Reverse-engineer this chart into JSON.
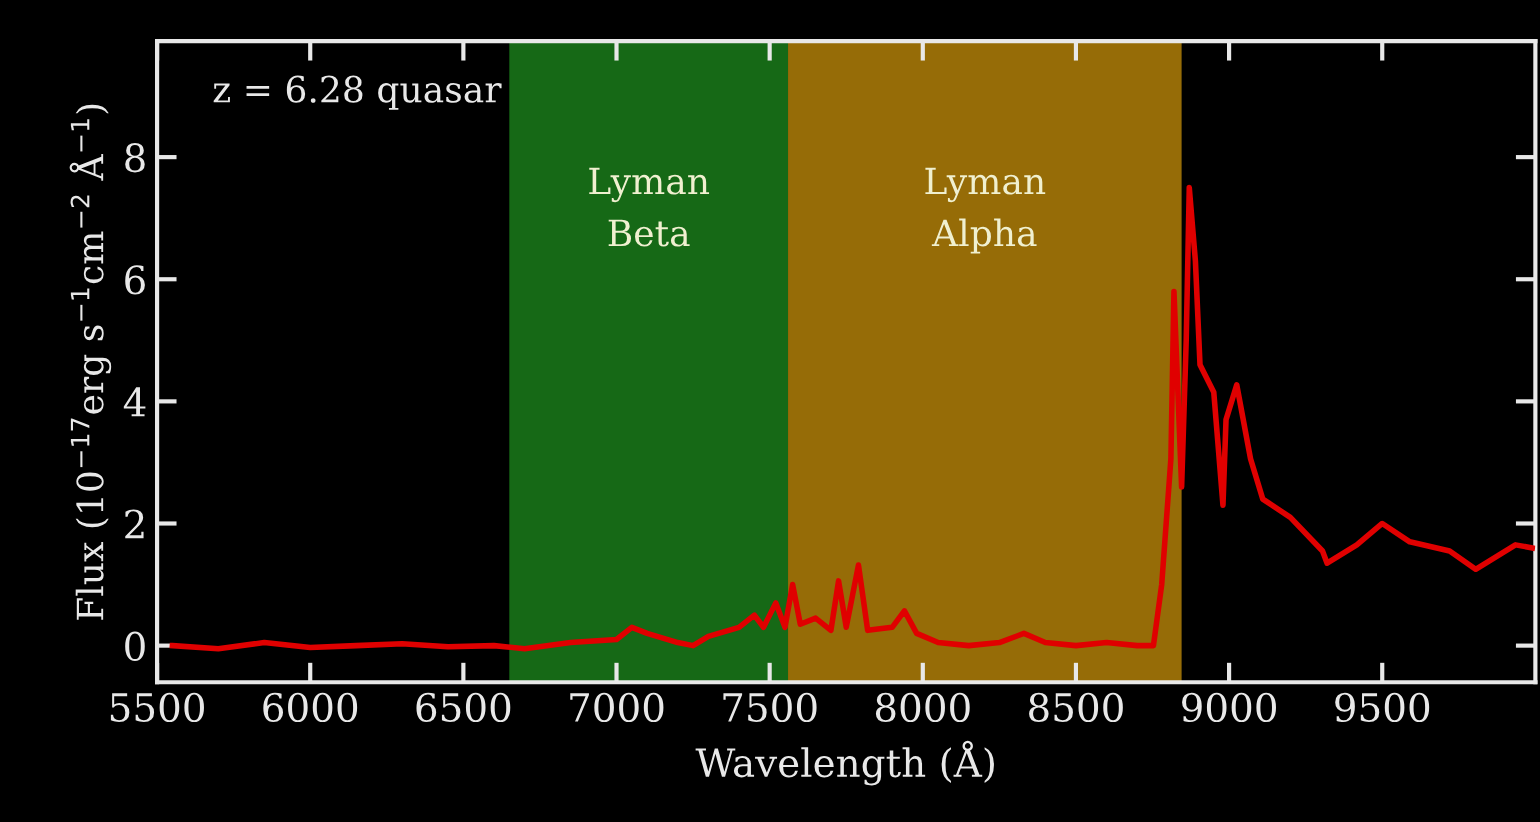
{
  "chart_data": {
    "type": "line",
    "xlabel": "Wavelength (Å)",
    "ylabel": "Flux (10$^{−17}$erg s$^{−1}$cm$^{−2}$ Å$^{−1}$)",
    "annotations": [
      "z = 6.28 quasar"
    ],
    "xlim": [
      5500,
      10000
    ],
    "xticks": [
      5500,
      6000,
      6500,
      7000,
      7500,
      8000,
      8500,
      9000,
      9500
    ],
    "ylim": [
      -0.6,
      9.9
    ],
    "yticks": [
      0,
      2,
      4,
      6,
      8
    ],
    "grid": false,
    "marker": "none",
    "line_style": "solid",
    "bands": [
      {
        "axis": "x",
        "from": 6650,
        "to": 7560,
        "label": "Lyman\nBeta",
        "color": "#1e8c1e"
      },
      {
        "axis": "x",
        "from": 7560,
        "to": 8845,
        "label": "Lyman\nAlpha",
        "color": "#c8900a"
      }
    ],
    "series": [
      {
        "color": "#e00000",
        "x": [
          5550,
          5700,
          5850,
          6000,
          6150,
          6300,
          6450,
          6600,
          6700,
          6850,
          7000,
          7050,
          7100,
          7200,
          7250,
          7300,
          7400,
          7450,
          7480,
          7520,
          7550,
          7575,
          7600,
          7650,
          7700,
          7725,
          7750,
          7790,
          7820,
          7900,
          7940,
          7980,
          8050,
          8150,
          8250,
          8330,
          8400,
          8500,
          8600,
          8700,
          8753,
          8780,
          8810,
          8820,
          8845,
          8860,
          8870,
          8890,
          8905,
          8950,
          8980,
          8990,
          9025,
          9070,
          9110,
          9200,
          9305,
          9320,
          9417,
          9500,
          9590,
          9720,
          9805,
          9935,
          9990
        ],
        "values": [
          0.0,
          -0.05,
          0.05,
          -0.03,
          0.0,
          0.03,
          -0.02,
          0.0,
          -0.05,
          0.05,
          0.1,
          0.3,
          0.2,
          0.05,
          0.0,
          0.15,
          0.3,
          0.5,
          0.3,
          0.7,
          0.3,
          1.0,
          0.35,
          0.45,
          0.25,
          1.06,
          0.3,
          1.32,
          0.25,
          0.3,
          0.57,
          0.2,
          0.05,
          0.0,
          0.05,
          0.2,
          0.05,
          0.0,
          0.05,
          0.0,
          0.0,
          1.0,
          3.06,
          5.8,
          2.6,
          5.0,
          7.5,
          6.3,
          4.6,
          4.15,
          2.3,
          3.7,
          4.27,
          3.06,
          2.4,
          2.1,
          1.55,
          1.35,
          1.65,
          2.0,
          1.7,
          1.55,
          1.25,
          1.65,
          1.6
        ]
      }
    ]
  }
}
